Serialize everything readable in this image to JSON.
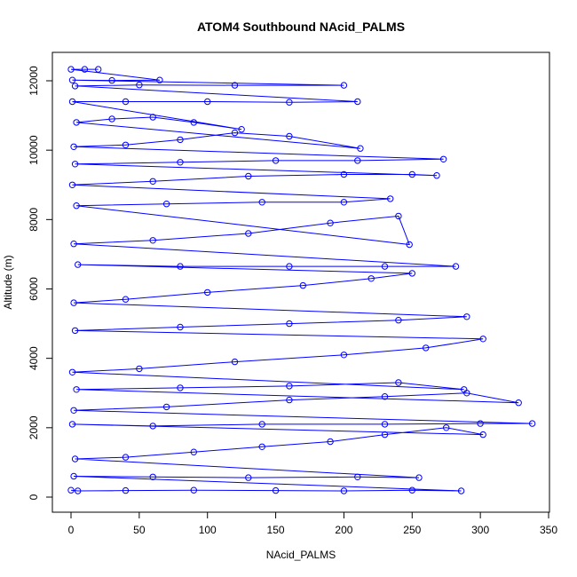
{
  "chart_data": {
    "type": "scatter",
    "title": "ATOM4 Southbound NAcid_PALMS",
    "xlabel": "NAcid_PALMS",
    "ylabel": "Altitude (m)",
    "xlim": [
      0,
      350
    ],
    "ylim": [
      0,
      12400
    ],
    "x_ticks": [
      0,
      50,
      100,
      150,
      200,
      250,
      300,
      350
    ],
    "y_ticks": [
      0,
      2000,
      4000,
      6000,
      8000,
      10000,
      12000
    ],
    "x_tick_labels": [
      "0",
      "50",
      "100",
      "150",
      "200",
      "250",
      "300",
      "350"
    ],
    "y_tick_labels": [
      "0",
      "2000",
      "4000",
      "6000",
      "8000",
      "10000",
      "12000"
    ],
    "grid": false,
    "legend": "none",
    "marker": "open-circle",
    "connected": true,
    "series_color": "#0000ff",
    "series": [
      {
        "points": [
          [
            0,
            200
          ],
          [
            5,
            180
          ],
          [
            40,
            190
          ],
          [
            90,
            200
          ],
          [
            150,
            190
          ],
          [
            200,
            180
          ],
          [
            250,
            200
          ],
          [
            286,
            180
          ],
          [
            2,
            600
          ],
          [
            60,
            580
          ],
          [
            130,
            560
          ],
          [
            210,
            580
          ],
          [
            255,
            560
          ],
          [
            3,
            1100
          ],
          [
            40,
            1150
          ],
          [
            90,
            1300
          ],
          [
            140,
            1450
          ],
          [
            190,
            1600
          ],
          [
            230,
            1800
          ],
          [
            275,
            2000
          ],
          [
            302,
            1800
          ],
          [
            1,
            2100
          ],
          [
            60,
            2050
          ],
          [
            140,
            2100
          ],
          [
            230,
            2100
          ],
          [
            300,
            2120
          ],
          [
            338,
            2120
          ],
          [
            2,
            2500
          ],
          [
            70,
            2600
          ],
          [
            160,
            2800
          ],
          [
            230,
            2900
          ],
          [
            290,
            3000
          ],
          [
            328,
            2720
          ],
          [
            4,
            3100
          ],
          [
            80,
            3150
          ],
          [
            160,
            3200
          ],
          [
            240,
            3300
          ],
          [
            288,
            3100
          ],
          [
            1,
            3600
          ],
          [
            50,
            3700
          ],
          [
            120,
            3900
          ],
          [
            200,
            4100
          ],
          [
            260,
            4300
          ],
          [
            302,
            4560
          ],
          [
            3,
            4800
          ],
          [
            80,
            4900
          ],
          [
            160,
            5000
          ],
          [
            240,
            5100
          ],
          [
            290,
            5200
          ],
          [
            2,
            5600
          ],
          [
            40,
            5700
          ],
          [
            100,
            5900
          ],
          [
            170,
            6100
          ],
          [
            220,
            6300
          ],
          [
            250,
            6450
          ],
          [
            5,
            6700
          ],
          [
            80,
            6650
          ],
          [
            160,
            6650
          ],
          [
            230,
            6650
          ],
          [
            282,
            6650
          ],
          [
            2,
            7300
          ],
          [
            60,
            7400
          ],
          [
            130,
            7600
          ],
          [
            190,
            7900
          ],
          [
            240,
            8100
          ],
          [
            248,
            7280
          ],
          [
            4,
            8400
          ],
          [
            70,
            8450
          ],
          [
            140,
            8500
          ],
          [
            200,
            8500
          ],
          [
            234,
            8600
          ],
          [
            1,
            9000
          ],
          [
            60,
            9100
          ],
          [
            130,
            9250
          ],
          [
            200,
            9300
          ],
          [
            250,
            9300
          ],
          [
            268,
            9270
          ],
          [
            3,
            9600
          ],
          [
            80,
            9650
          ],
          [
            150,
            9700
          ],
          [
            210,
            9700
          ],
          [
            273,
            9740
          ],
          [
            2,
            10100
          ],
          [
            40,
            10150
          ],
          [
            80,
            10300
          ],
          [
            120,
            10500
          ],
          [
            160,
            10400
          ],
          [
            212,
            10050
          ],
          [
            4,
            10800
          ],
          [
            30,
            10900
          ],
          [
            60,
            10950
          ],
          [
            90,
            10800
          ],
          [
            125,
            10600
          ],
          [
            1,
            11400
          ],
          [
            40,
            11400
          ],
          [
            100,
            11400
          ],
          [
            160,
            11380
          ],
          [
            210,
            11400
          ],
          [
            3,
            11850
          ],
          [
            50,
            11880
          ],
          [
            120,
            11870
          ],
          [
            200,
            11870
          ],
          [
            1,
            12020
          ],
          [
            30,
            12010
          ],
          [
            65,
            12020
          ],
          [
            0,
            12330
          ],
          [
            10,
            12330
          ],
          [
            20,
            12330
          ]
        ]
      }
    ]
  }
}
